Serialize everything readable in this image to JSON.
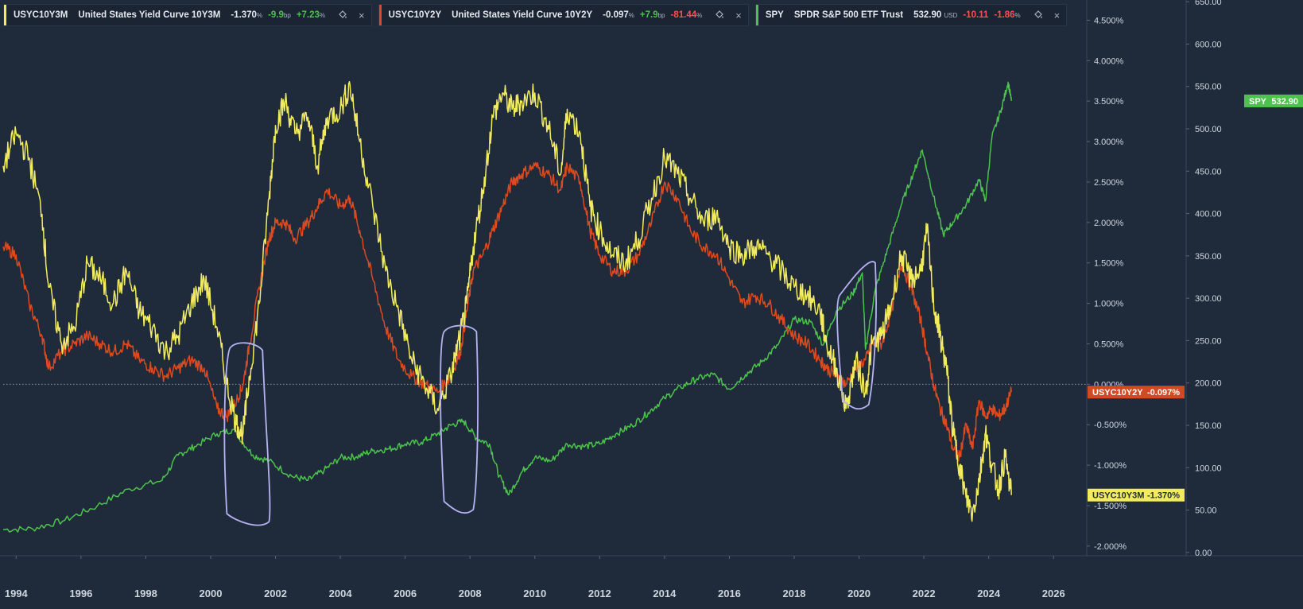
{
  "legends": [
    {
      "symbol": "USYC10Y3M",
      "name": "United States Yield Curve 10Y3M",
      "value": "-1.370",
      "value_unit": "%",
      "change": "-9.9",
      "change_unit": "bp",
      "change_pct": "+7.23",
      "change_pct_unit": "%",
      "change_color": "#4cc34c",
      "color": "#f2ec5d",
      "icon_settings": "paint-bucket-icon",
      "icon_close": "×"
    },
    {
      "symbol": "USYC10Y2Y",
      "name": "United States Yield Curve 10Y2Y",
      "value": "-0.097",
      "value_unit": "%",
      "change": "+7.9",
      "change_unit": "bp",
      "change_pct": "-81.44",
      "change_pct_unit": "%",
      "change_color": "#ff5050",
      "color": "#dd4a1f",
      "icon_settings": "paint-bucket-icon",
      "icon_close": "×"
    },
    {
      "symbol": "SPY",
      "name": "SPDR S&P 500 ETF Trust",
      "value": "532.90",
      "value_unit": "USD",
      "change": "-10.11",
      "change_unit": "",
      "change_pct": "-1.86",
      "change_pct_unit": "%",
      "change_color": "#ff5050",
      "color": "#4cc34c",
      "icon_settings": "paint-bucket-icon",
      "icon_close": "×"
    }
  ],
  "chart_data": {
    "type": "line",
    "x_ticks": [
      "1994",
      "1996",
      "1998",
      "2000",
      "2002",
      "2004",
      "2006",
      "2008",
      "2010",
      "2012",
      "2014",
      "2016",
      "2018",
      "2020",
      "2022",
      "2024",
      "2026"
    ],
    "xlim": [
      1993.6,
      2027.0
    ],
    "yield_axis": {
      "ticks": [
        "4.500%",
        "4.000%",
        "3.500%",
        "3.000%",
        "2.500%",
        "2.000%",
        "1.500%",
        "1.000%",
        "0.500%",
        "0.000%",
        "-0.500%",
        "-1.000%",
        "-1.500%",
        "-2.000%"
      ],
      "range": [
        -2.1,
        4.75
      ]
    },
    "price_axis": {
      "ticks": [
        "650.00",
        "600.00",
        "550.00",
        "500.00",
        "450.00",
        "400.00",
        "350.00",
        "300.00",
        "250.00",
        "200.00",
        "150.00",
        "100.00",
        "50.00",
        "0.00"
      ],
      "range": [
        -2,
        652
      ]
    },
    "zero_line": 0,
    "series": [
      {
        "name": "USYC10Y3M",
        "axis": "yield",
        "color": "#f2ec5d",
        "label": "USYC10Y3M",
        "last_label": "-1.370%",
        "points": [
          [
            1993.6,
            2.7
          ],
          [
            1994.0,
            3.1
          ],
          [
            1994.4,
            2.8
          ],
          [
            1994.8,
            2.1
          ],
          [
            1995.0,
            1.2
          ],
          [
            1995.4,
            0.5
          ],
          [
            1995.8,
            0.7
          ],
          [
            1996.2,
            1.5
          ],
          [
            1996.6,
            1.3
          ],
          [
            1997.0,
            1.0
          ],
          [
            1997.4,
            1.4
          ],
          [
            1997.8,
            0.9
          ],
          [
            1998.2,
            0.7
          ],
          [
            1998.6,
            0.4
          ],
          [
            1999.0,
            0.6
          ],
          [
            1999.4,
            1.0
          ],
          [
            1999.8,
            1.3
          ],
          [
            2000.2,
            0.7
          ],
          [
            2000.5,
            0.0
          ],
          [
            2000.8,
            -0.5
          ],
          [
            2001.0,
            -0.6
          ],
          [
            2001.2,
            0.1
          ],
          [
            2001.5,
            1.0
          ],
          [
            2001.8,
            2.3
          ],
          [
            2002.0,
            3.2
          ],
          [
            2002.3,
            3.5
          ],
          [
            2002.6,
            3.1
          ],
          [
            2003.0,
            3.3
          ],
          [
            2003.3,
            2.7
          ],
          [
            2003.6,
            3.3
          ],
          [
            2004.0,
            3.4
          ],
          [
            2004.3,
            3.7
          ],
          [
            2004.6,
            3.0
          ],
          [
            2005.0,
            2.2
          ],
          [
            2005.4,
            1.4
          ],
          [
            2005.8,
            0.9
          ],
          [
            2006.2,
            0.3
          ],
          [
            2006.6,
            0.0
          ],
          [
            2007.0,
            -0.3
          ],
          [
            2007.4,
            0.1
          ],
          [
            2007.7,
            0.6
          ],
          [
            2007.9,
            1.0
          ],
          [
            2008.1,
            1.7
          ],
          [
            2008.4,
            2.4
          ],
          [
            2008.7,
            3.3
          ],
          [
            2009.0,
            3.6
          ],
          [
            2009.3,
            3.4
          ],
          [
            2009.6,
            3.5
          ],
          [
            2010.0,
            3.6
          ],
          [
            2010.4,
            3.2
          ],
          [
            2010.8,
            2.6
          ],
          [
            2011.0,
            3.4
          ],
          [
            2011.4,
            3.1
          ],
          [
            2011.7,
            2.2
          ],
          [
            2012.0,
            1.9
          ],
          [
            2012.4,
            1.6
          ],
          [
            2012.8,
            1.5
          ],
          [
            2013.2,
            1.8
          ],
          [
            2013.6,
            2.3
          ],
          [
            2014.0,
            2.8
          ],
          [
            2014.4,
            2.6
          ],
          [
            2014.8,
            2.3
          ],
          [
            2015.2,
            2.0
          ],
          [
            2015.6,
            2.1
          ],
          [
            2016.0,
            1.7
          ],
          [
            2016.4,
            1.6
          ],
          [
            2016.8,
            1.7
          ],
          [
            2017.2,
            1.6
          ],
          [
            2017.6,
            1.4
          ],
          [
            2018.0,
            1.2
          ],
          [
            2018.4,
            1.1
          ],
          [
            2018.8,
            0.9
          ],
          [
            2019.0,
            0.5
          ],
          [
            2019.3,
            0.2
          ],
          [
            2019.6,
            -0.3
          ],
          [
            2019.9,
            0.3
          ],
          [
            2020.2,
            -0.1
          ],
          [
            2020.4,
            0.5
          ],
          [
            2020.7,
            0.6
          ],
          [
            2021.0,
            1.0
          ],
          [
            2021.3,
            1.6
          ],
          [
            2021.6,
            1.3
          ],
          [
            2021.9,
            1.4
          ],
          [
            2022.1,
            1.9
          ],
          [
            2022.3,
            1.0
          ],
          [
            2022.5,
            0.6
          ],
          [
            2022.7,
            0.2
          ],
          [
            2022.9,
            -0.6
          ],
          [
            2023.1,
            -1.0
          ],
          [
            2023.3,
            -1.4
          ],
          [
            2023.5,
            -1.6
          ],
          [
            2023.7,
            -1.2
          ],
          [
            2023.9,
            -0.6
          ],
          [
            2024.1,
            -1.0
          ],
          [
            2024.3,
            -1.3
          ],
          [
            2024.5,
            -0.9
          ],
          [
            2024.7,
            -1.37
          ]
        ]
      },
      {
        "name": "USYC10Y2Y",
        "axis": "yield",
        "color": "#dd4a1f",
        "label": "USYC10Y2Y",
        "last_label": "-0.097%",
        "points": [
          [
            1993.6,
            1.7
          ],
          [
            1994.0,
            1.6
          ],
          [
            1994.4,
            1.0
          ],
          [
            1994.8,
            0.6
          ],
          [
            1995.0,
            0.2
          ],
          [
            1995.4,
            0.4
          ],
          [
            1995.8,
            0.5
          ],
          [
            1996.2,
            0.6
          ],
          [
            1996.6,
            0.5
          ],
          [
            1997.0,
            0.4
          ],
          [
            1997.4,
            0.5
          ],
          [
            1997.8,
            0.3
          ],
          [
            1998.2,
            0.2
          ],
          [
            1998.6,
            0.1
          ],
          [
            1999.0,
            0.2
          ],
          [
            1999.4,
            0.3
          ],
          [
            1999.8,
            0.2
          ],
          [
            2000.2,
            -0.3
          ],
          [
            2000.5,
            -0.4
          ],
          [
            2000.8,
            -0.2
          ],
          [
            2001.0,
            0.0
          ],
          [
            2001.2,
            0.5
          ],
          [
            2001.5,
            1.2
          ],
          [
            2001.8,
            1.8
          ],
          [
            2002.0,
            2.0
          ],
          [
            2002.3,
            2.0
          ],
          [
            2002.6,
            1.8
          ],
          [
            2003.0,
            2.0
          ],
          [
            2003.3,
            2.2
          ],
          [
            2003.6,
            2.4
          ],
          [
            2004.0,
            2.2
          ],
          [
            2004.3,
            2.3
          ],
          [
            2004.6,
            1.9
          ],
          [
            2005.0,
            1.3
          ],
          [
            2005.4,
            0.7
          ],
          [
            2005.8,
            0.3
          ],
          [
            2006.2,
            0.1
          ],
          [
            2006.6,
            0.0
          ],
          [
            2007.0,
            -0.1
          ],
          [
            2007.4,
            0.1
          ],
          [
            2007.7,
            0.4
          ],
          [
            2007.9,
            0.9
          ],
          [
            2008.1,
            1.4
          ],
          [
            2008.4,
            1.6
          ],
          [
            2008.7,
            1.9
          ],
          [
            2009.0,
            2.2
          ],
          [
            2009.3,
            2.5
          ],
          [
            2009.6,
            2.6
          ],
          [
            2010.0,
            2.7
          ],
          [
            2010.4,
            2.6
          ],
          [
            2010.8,
            2.4
          ],
          [
            2011.0,
            2.7
          ],
          [
            2011.4,
            2.5
          ],
          [
            2011.7,
            1.9
          ],
          [
            2012.0,
            1.6
          ],
          [
            2012.4,
            1.4
          ],
          [
            2012.8,
            1.4
          ],
          [
            2013.2,
            1.6
          ],
          [
            2013.6,
            2.0
          ],
          [
            2014.0,
            2.5
          ],
          [
            2014.4,
            2.3
          ],
          [
            2014.8,
            1.9
          ],
          [
            2015.2,
            1.7
          ],
          [
            2015.6,
            1.6
          ],
          [
            2016.0,
            1.3
          ],
          [
            2016.4,
            1.0
          ],
          [
            2016.8,
            1.1
          ],
          [
            2017.2,
            1.0
          ],
          [
            2017.6,
            0.8
          ],
          [
            2018.0,
            0.6
          ],
          [
            2018.4,
            0.5
          ],
          [
            2018.8,
            0.3
          ],
          [
            2019.0,
            0.2
          ],
          [
            2019.3,
            0.1
          ],
          [
            2019.6,
            0.0
          ],
          [
            2019.9,
            0.2
          ],
          [
            2020.2,
            0.3
          ],
          [
            2020.4,
            0.5
          ],
          [
            2020.7,
            0.5
          ],
          [
            2021.0,
            0.9
          ],
          [
            2021.3,
            1.5
          ],
          [
            2021.6,
            1.2
          ],
          [
            2021.9,
            0.8
          ],
          [
            2022.1,
            0.4
          ],
          [
            2022.3,
            0.0
          ],
          [
            2022.5,
            -0.3
          ],
          [
            2022.7,
            -0.5
          ],
          [
            2022.9,
            -0.8
          ],
          [
            2023.1,
            -0.9
          ],
          [
            2023.3,
            -0.5
          ],
          [
            2023.5,
            -0.8
          ],
          [
            2023.7,
            -0.2
          ],
          [
            2023.9,
            -0.4
          ],
          [
            2024.1,
            -0.3
          ],
          [
            2024.3,
            -0.4
          ],
          [
            2024.5,
            -0.3
          ],
          [
            2024.7,
            -0.097
          ]
        ]
      },
      {
        "name": "SPY",
        "axis": "price",
        "color": "#4cc34c",
        "label": "SPY",
        "last_label": "532.90",
        "points": [
          [
            1993.6,
            27
          ],
          [
            1994.5,
            28
          ],
          [
            1995.5,
            38
          ],
          [
            1996.5,
            55
          ],
          [
            1997.5,
            75
          ],
          [
            1998.5,
            85
          ],
          [
            1999.0,
            115
          ],
          [
            1999.5,
            125
          ],
          [
            2000.2,
            140
          ],
          [
            2000.7,
            145
          ],
          [
            2001.3,
            115
          ],
          [
            2001.8,
            108
          ],
          [
            2002.5,
            90
          ],
          [
            2003.0,
            85
          ],
          [
            2003.5,
            97
          ],
          [
            2004.0,
            112
          ],
          [
            2004.5,
            113
          ],
          [
            2005.0,
            120
          ],
          [
            2005.5,
            122
          ],
          [
            2006.0,
            128
          ],
          [
            2006.5,
            130
          ],
          [
            2007.0,
            140
          ],
          [
            2007.4,
            150
          ],
          [
            2007.8,
            155
          ],
          [
            2008.2,
            135
          ],
          [
            2008.6,
            128
          ],
          [
            2008.9,
            90
          ],
          [
            2009.2,
            68
          ],
          [
            2009.6,
            95
          ],
          [
            2010.0,
            112
          ],
          [
            2010.5,
            108
          ],
          [
            2011.0,
            128
          ],
          [
            2011.5,
            125
          ],
          [
            2012.0,
            128
          ],
          [
            2012.5,
            140
          ],
          [
            2013.0,
            150
          ],
          [
            2013.5,
            165
          ],
          [
            2014.0,
            182
          ],
          [
            2014.5,
            195
          ],
          [
            2015.0,
            205
          ],
          [
            2015.5,
            210
          ],
          [
            2016.0,
            193
          ],
          [
            2016.5,
            210
          ],
          [
            2017.0,
            225
          ],
          [
            2017.5,
            245
          ],
          [
            2018.0,
            275
          ],
          [
            2018.5,
            272
          ],
          [
            2018.9,
            245
          ],
          [
            2019.3,
            285
          ],
          [
            2019.8,
            305
          ],
          [
            2020.1,
            330
          ],
          [
            2020.2,
            240
          ],
          [
            2020.5,
            310
          ],
          [
            2020.9,
            360
          ],
          [
            2021.3,
            410
          ],
          [
            2021.7,
            450
          ],
          [
            2021.95,
            475
          ],
          [
            2022.3,
            420
          ],
          [
            2022.6,
            375
          ],
          [
            2022.9,
            390
          ],
          [
            2023.3,
            410
          ],
          [
            2023.7,
            440
          ],
          [
            2023.9,
            415
          ],
          [
            2024.1,
            490
          ],
          [
            2024.4,
            525
          ],
          [
            2024.6,
            555
          ],
          [
            2024.7,
            532.9
          ]
        ]
      }
    ]
  }
}
